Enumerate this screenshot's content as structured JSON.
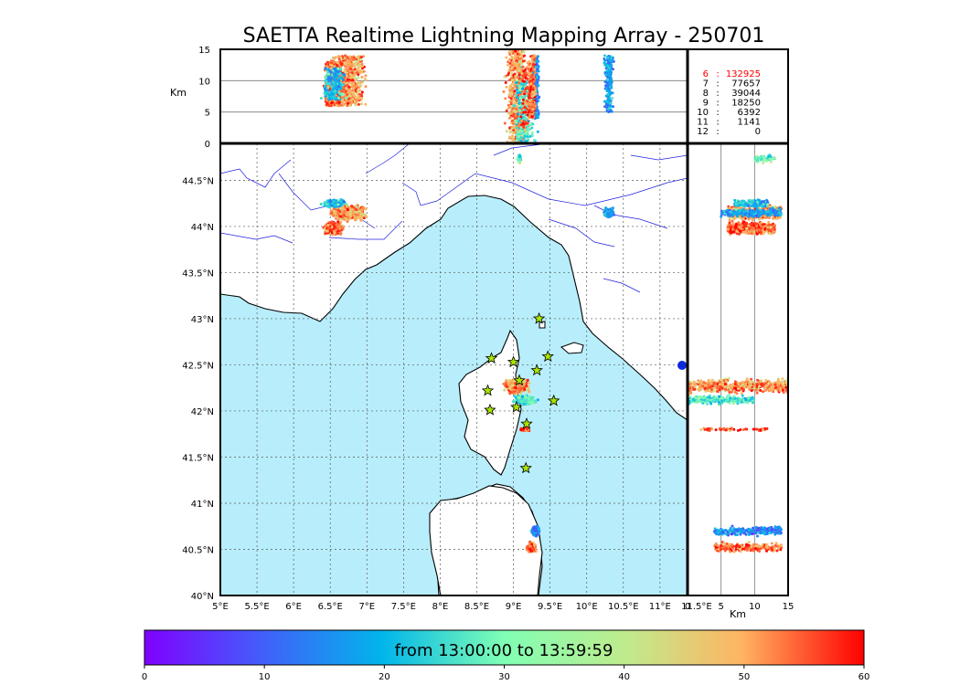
{
  "chart_data": {
    "type": "scatter",
    "title": "SAETTA Realtime Lightning Mapping Array - 250701",
    "map_panel": {
      "lon_range": [
        5,
        12
      ],
      "lat_range": [
        40,
        44.9
      ],
      "xtick_labels": [
        "5°E",
        "5.5°E",
        "6°E",
        "6.5°E",
        "7°E",
        "7.5°E",
        "8°E",
        "8.5°E",
        "9°E",
        "9.5°E",
        "10°E",
        "10.5°E",
        "11°E",
        "11.5°E"
      ],
      "ytick_labels": [
        "40°N",
        "40.5°N",
        "41°N",
        "41.5°N",
        "42°N",
        "42.5°N",
        "43°N",
        "43.5°N",
        "44°N",
        "44.5°N"
      ],
      "grid": true,
      "land_color": "#ffffff",
      "sea_color": "#b8eefb",
      "coast_color": "#000000",
      "river_color": "#2020e0",
      "station_marker": "star",
      "station_color": "#a8e400",
      "stations": [
        {
          "lon": 9.35,
          "lat": 43.0
        },
        {
          "lon": 8.7,
          "lat": 42.57
        },
        {
          "lon": 9.0,
          "lat": 42.53
        },
        {
          "lon": 9.47,
          "lat": 42.59
        },
        {
          "lon": 9.32,
          "lat": 42.44
        },
        {
          "lon": 9.08,
          "lat": 42.33
        },
        {
          "lon": 8.65,
          "lat": 42.22
        },
        {
          "lon": 9.55,
          "lat": 42.11
        },
        {
          "lon": 8.68,
          "lat": 42.01
        },
        {
          "lon": 9.04,
          "lat": 42.04
        },
        {
          "lon": 9.18,
          "lat": 41.86
        },
        {
          "lon": 9.17,
          "lat": 41.38
        }
      ]
    },
    "altitude_lon_panel": {
      "ylabel": "Km",
      "ylim": [
        0,
        15
      ],
      "yticks": [
        "0",
        "5",
        "10",
        "15"
      ],
      "hlines": [
        5,
        10
      ]
    },
    "altitude_lat_panel": {
      "xlabel": "Km",
      "xlim": [
        0,
        15
      ],
      "xticks": [
        "0",
        "5",
        "10",
        "15"
      ],
      "vlines": [
        5,
        10
      ]
    },
    "stations_table": [
      {
        "stations": "6",
        "sep": ":",
        "count": "132925",
        "highlight": true
      },
      {
        "stations": "7",
        "sep": ":",
        "count": "77657",
        "highlight": false
      },
      {
        "stations": "8",
        "sep": ":",
        "count": "39044",
        "highlight": false
      },
      {
        "stations": "9",
        "sep": ":",
        "count": "18250",
        "highlight": false
      },
      {
        "stations": "10",
        "sep": ":",
        "count": "6392",
        "highlight": false
      },
      {
        "stations": "11",
        "sep": ":",
        "count": "1141",
        "highlight": false
      },
      {
        "stations": "12",
        "sep": ":",
        "count": "0",
        "highlight": false
      }
    ],
    "colorbar": {
      "label": "from 13:00:00 to 13:59:59",
      "range": [
        0,
        60
      ],
      "tick_labels": [
        "0",
        "10",
        "20",
        "30",
        "40",
        "50",
        "60"
      ],
      "colormap": "rainbow"
    },
    "clusters": [
      {
        "lon": 6.75,
        "lat": 44.15,
        "spread_lon": 0.28,
        "spread_lat": 0.1,
        "alt_range": [
          6,
          14
        ],
        "density": "high",
        "time_bias": 0.85
      },
      {
        "lon": 6.55,
        "lat": 43.98,
        "spread_lon": 0.15,
        "spread_lat": 0.08,
        "alt_range": [
          6,
          13
        ],
        "density": "high",
        "time_bias": 0.9
      },
      {
        "lon": 6.55,
        "lat": 44.25,
        "spread_lon": 0.2,
        "spread_lat": 0.05,
        "alt_range": [
          7,
          12
        ],
        "density": "medium",
        "time_bias": 0.35
      },
      {
        "lon": 9.08,
        "lat": 44.73,
        "spread_lon": 0.03,
        "spread_lat": 0.05,
        "alt_range": [
          10,
          13
        ],
        "density": "low",
        "time_bias": 0.5
      },
      {
        "lon": 10.3,
        "lat": 44.15,
        "spread_lon": 0.08,
        "spread_lat": 0.06,
        "alt_range": [
          5,
          14
        ],
        "density": "medium",
        "time_bias": 0.3
      },
      {
        "lon": 9.05,
        "lat": 42.27,
        "spread_lon": 0.2,
        "spread_lat": 0.1,
        "alt_range": [
          0,
          15
        ],
        "density": "high",
        "time_bias": 0.85
      },
      {
        "lon": 9.15,
        "lat": 42.12,
        "spread_lon": 0.2,
        "spread_lat": 0.06,
        "alt_range": [
          0,
          10
        ],
        "density": "medium",
        "time_bias": 0.45
      },
      {
        "lon": 9.15,
        "lat": 41.8,
        "spread_lon": 0.07,
        "spread_lat": 0.02,
        "alt_range": [
          2,
          12
        ],
        "density": "low",
        "time_bias": 0.95
      },
      {
        "lon": 9.3,
        "lat": 40.7,
        "spread_lon": 0.06,
        "spread_lat": 0.06,
        "alt_range": [
          4,
          14
        ],
        "density": "medium",
        "time_bias": 0.25
      },
      {
        "lon": 9.25,
        "lat": 40.52,
        "spread_lon": 0.08,
        "spread_lat": 0.06,
        "alt_range": [
          4,
          14
        ],
        "density": "medium",
        "time_bias": 0.9
      }
    ]
  }
}
